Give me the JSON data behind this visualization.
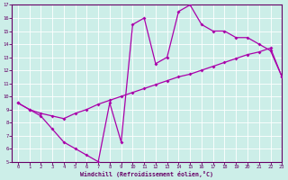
{
  "xlabel": "Windchill (Refroidissement éolien,°C)",
  "bg_color": "#cceee8",
  "line_color": "#aa00aa",
  "grid_color": "#ffffff",
  "axis_color": "#660066",
  "tick_color": "#660066",
  "label_color": "#660066",
  "xlim": [
    -0.5,
    23
  ],
  "ylim": [
    5,
    17
  ],
  "xticks": [
    0,
    1,
    2,
    3,
    4,
    5,
    6,
    7,
    8,
    9,
    10,
    11,
    12,
    13,
    14,
    15,
    16,
    17,
    18,
    19,
    20,
    21,
    22,
    23
  ],
  "yticks": [
    5,
    6,
    7,
    8,
    9,
    10,
    11,
    12,
    13,
    14,
    15,
    16,
    17
  ],
  "curve1_x": [
    0,
    1,
    2,
    3,
    4,
    5,
    6,
    7,
    8,
    9,
    10,
    11,
    12,
    13,
    14,
    15,
    16,
    17,
    18,
    19,
    20,
    21,
    22,
    23
  ],
  "curve1_y": [
    9.5,
    9.0,
    8.5,
    7.5,
    6.5,
    6.0,
    5.5,
    5.0,
    9.5,
    6.5,
    15.5,
    16.0,
    12.5,
    13.0,
    16.5,
    17.0,
    15.5,
    15.0,
    15.0,
    14.5,
    14.5,
    14.0,
    13.5,
    11.5
  ],
  "curve2_x": [
    0,
    1,
    2,
    3,
    4,
    5,
    6,
    7,
    8,
    9,
    10,
    11,
    12,
    13,
    14,
    15,
    16,
    17,
    18,
    19,
    20,
    21,
    22,
    23
  ],
  "curve2_y": [
    9.5,
    9.0,
    8.7,
    8.5,
    8.3,
    8.7,
    9.0,
    9.4,
    9.7,
    10.0,
    10.3,
    10.6,
    10.9,
    11.2,
    11.5,
    11.7,
    12.0,
    12.3,
    12.6,
    12.9,
    13.2,
    13.4,
    13.7,
    11.5
  ]
}
